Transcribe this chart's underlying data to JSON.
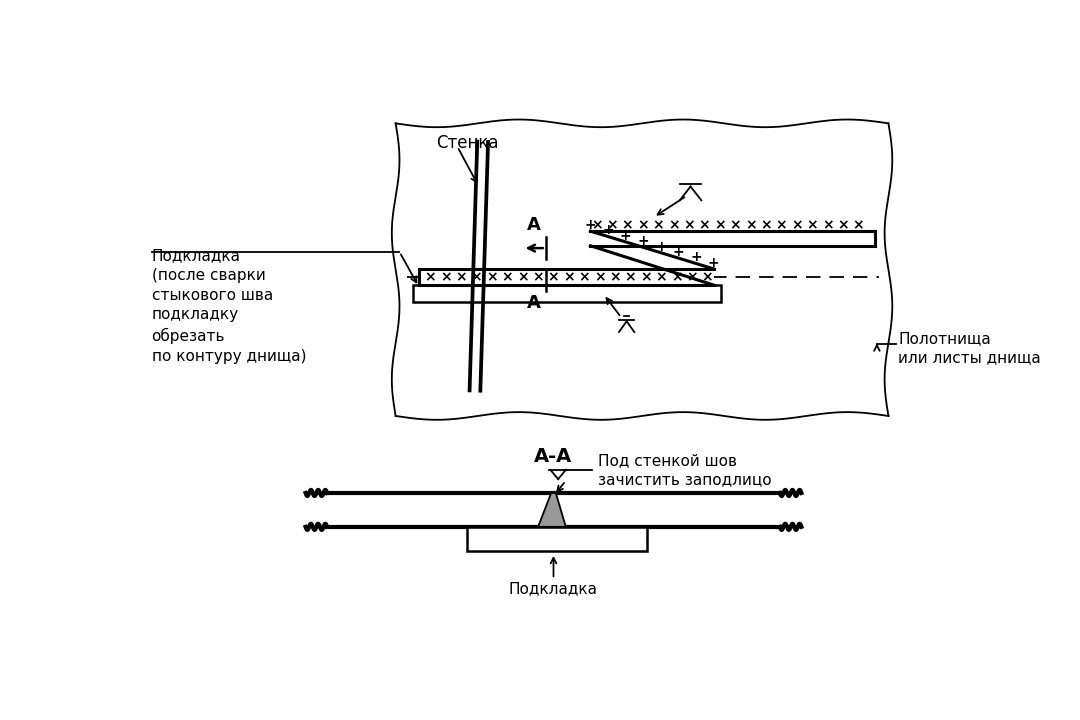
{
  "bg_color": "#ffffff",
  "line_color": "#000000",
  "gray_fill": "#aaaaaa",
  "title_aa": "А-А",
  "label_stenka": "Стенка",
  "label_podkladka_long": "Подкладка\n(после сварки\nстыкового шва\nподкладку\nобрезать\nпо контуру днища)",
  "label_polotno": "Полотнища\nили листы днища",
  "label_pod_stenkoi": "Под стенкой шов\nзачистить заподлицо",
  "label_podkladka2": "Подкладка",
  "label_A": "А",
  "lw_main": 2.2,
  "lw_thin": 1.3,
  "lw_med": 1.8,
  "lw_thick": 3.0
}
